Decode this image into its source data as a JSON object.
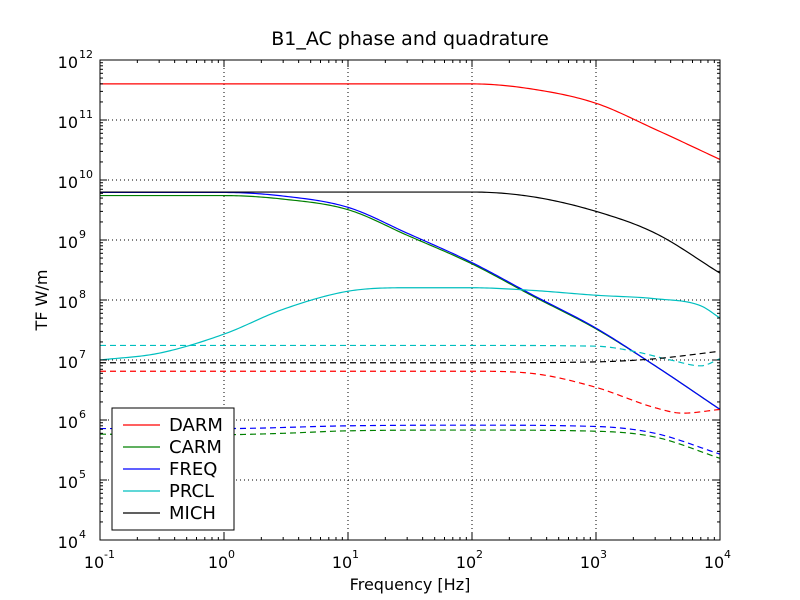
{
  "chart_data": {
    "type": "line",
    "title": "B1_AC phase and quadrature",
    "xlabel": "Frequency [Hz]",
    "ylabel": "TF W/m",
    "x_scale": "log",
    "y_scale": "log",
    "xlim": [
      0.1,
      10000
    ],
    "ylim": [
      10000,
      1000000000000
    ],
    "x_ticks": [
      {
        "base": "10",
        "exp": "-1",
        "value": 0.1
      },
      {
        "base": "10",
        "exp": "0",
        "value": 1
      },
      {
        "base": "10",
        "exp": "1",
        "value": 10
      },
      {
        "base": "10",
        "exp": "2",
        "value": 100
      },
      {
        "base": "10",
        "exp": "3",
        "value": 1000
      },
      {
        "base": "10",
        "exp": "4",
        "value": 10000
      }
    ],
    "y_ticks": [
      {
        "base": "10",
        "exp": "4",
        "value": 10000
      },
      {
        "base": "10",
        "exp": "5",
        "value": 100000
      },
      {
        "base": "10",
        "exp": "6",
        "value": 1000000
      },
      {
        "base": "10",
        "exp": "7",
        "value": 10000000
      },
      {
        "base": "10",
        "exp": "8",
        "value": 100000000
      },
      {
        "base": "10",
        "exp": "9",
        "value": 1000000000
      },
      {
        "base": "10",
        "exp": "10",
        "value": 10000000000
      },
      {
        "base": "10",
        "exp": "11",
        "value": 100000000000
      },
      {
        "base": "10",
        "exp": "12",
        "value": 1000000000000
      }
    ],
    "grid": true,
    "legend_position": "bottom-left",
    "series": [
      {
        "name": "DARM",
        "color": "#ff0000",
        "style": "solid",
        "x": [
          0.1,
          1,
          10,
          100,
          300,
          1000,
          3000,
          10000
        ],
        "y": [
          400000000000.0,
          400000000000.0,
          400000000000.0,
          400000000000.0,
          330000000000.0,
          190000000000.0,
          70000000000.0,
          22000000000.0
        ]
      },
      {
        "name": "CARM",
        "color": "#008000",
        "style": "solid",
        "x": [
          0.1,
          1,
          3,
          10,
          30,
          100,
          300,
          1000,
          3000,
          10000
        ],
        "y": [
          5500000000.0,
          5500000000.0,
          4800000000.0,
          3200000000.0,
          1200000000.0,
          400000000.0,
          120000000.0,
          33000000.0,
          8000000.0,
          1500000.0
        ]
      },
      {
        "name": "FREQ",
        "color": "#0000ff",
        "style": "solid",
        "x": [
          0.1,
          1,
          3,
          10,
          30,
          100,
          300,
          1000,
          3000,
          10000
        ],
        "y": [
          6200000000.0,
          6200000000.0,
          5400000000.0,
          3500000000.0,
          1300000000.0,
          420000000.0,
          125000000.0,
          34000000.0,
          8000000.0,
          1500000.0
        ]
      },
      {
        "name": "PRCL",
        "color": "#00bfbf",
        "style": "solid",
        "x": [
          0.1,
          0.3,
          1,
          3,
          10,
          30,
          100,
          300,
          1000,
          3000,
          7000,
          10000
        ],
        "y": [
          10000000.0,
          13000000.0,
          27000000.0,
          70000000.0,
          140000000.0,
          160000000.0,
          160000000.0,
          145000000.0,
          120000000.0,
          105000000.0,
          80000000.0,
          50000000.0
        ]
      },
      {
        "name": "MICH",
        "color": "#000000",
        "style": "solid",
        "x": [
          0.1,
          1,
          10,
          100,
          300,
          1000,
          3000,
          10000
        ],
        "y": [
          6300000000.0,
          6300000000.0,
          6300000000.0,
          6300000000.0,
          5300000000.0,
          3000000000.0,
          1300000000.0,
          280000000.0
        ]
      },
      {
        "name": "",
        "color": "#ff0000",
        "style": "dashed",
        "x": [
          0.1,
          1,
          10,
          100,
          300,
          1000,
          3000,
          5000,
          10000
        ],
        "y": [
          6500000.0,
          6500000.0,
          6500000.0,
          6500000.0,
          6000000.0,
          3500000.0,
          1600000.0,
          1300000.0,
          1500000.0
        ]
      },
      {
        "name": "",
        "color": "#008000",
        "style": "dashed",
        "x": [
          0.1,
          1,
          3,
          10,
          100,
          1000,
          3000,
          10000
        ],
        "y": [
          580000.0,
          570000.0,
          600000.0,
          660000.0,
          680000.0,
          650000.0,
          520000.0,
          230000.0
        ]
      },
      {
        "name": "",
        "color": "#0000ff",
        "style": "dashed",
        "x": [
          0.1,
          1,
          10,
          100,
          1000,
          3000,
          10000
        ],
        "y": [
          720000.0,
          720000.0,
          800000.0,
          820000.0,
          780000.0,
          600000.0,
          270000.0
        ]
      },
      {
        "name": "",
        "color": "#00bfbf",
        "style": "dashed",
        "x": [
          0.1,
          1,
          10,
          100,
          1000,
          2000,
          4000,
          7000,
          10000
        ],
        "y": [
          17500000.0,
          17500000.0,
          17500000.0,
          17500000.0,
          17000000.0,
          14000000.0,
          10000000.0,
          8000000.0,
          10500000.0
        ]
      },
      {
        "name": "",
        "color": "#000000",
        "style": "dashed",
        "x": [
          0.1,
          1,
          10,
          100,
          1000,
          3000,
          10000
        ],
        "y": [
          9000000.0,
          9000000.0,
          9000000.0,
          9000000.0,
          9300000.0,
          10500000.0,
          14000000.0
        ]
      }
    ]
  }
}
